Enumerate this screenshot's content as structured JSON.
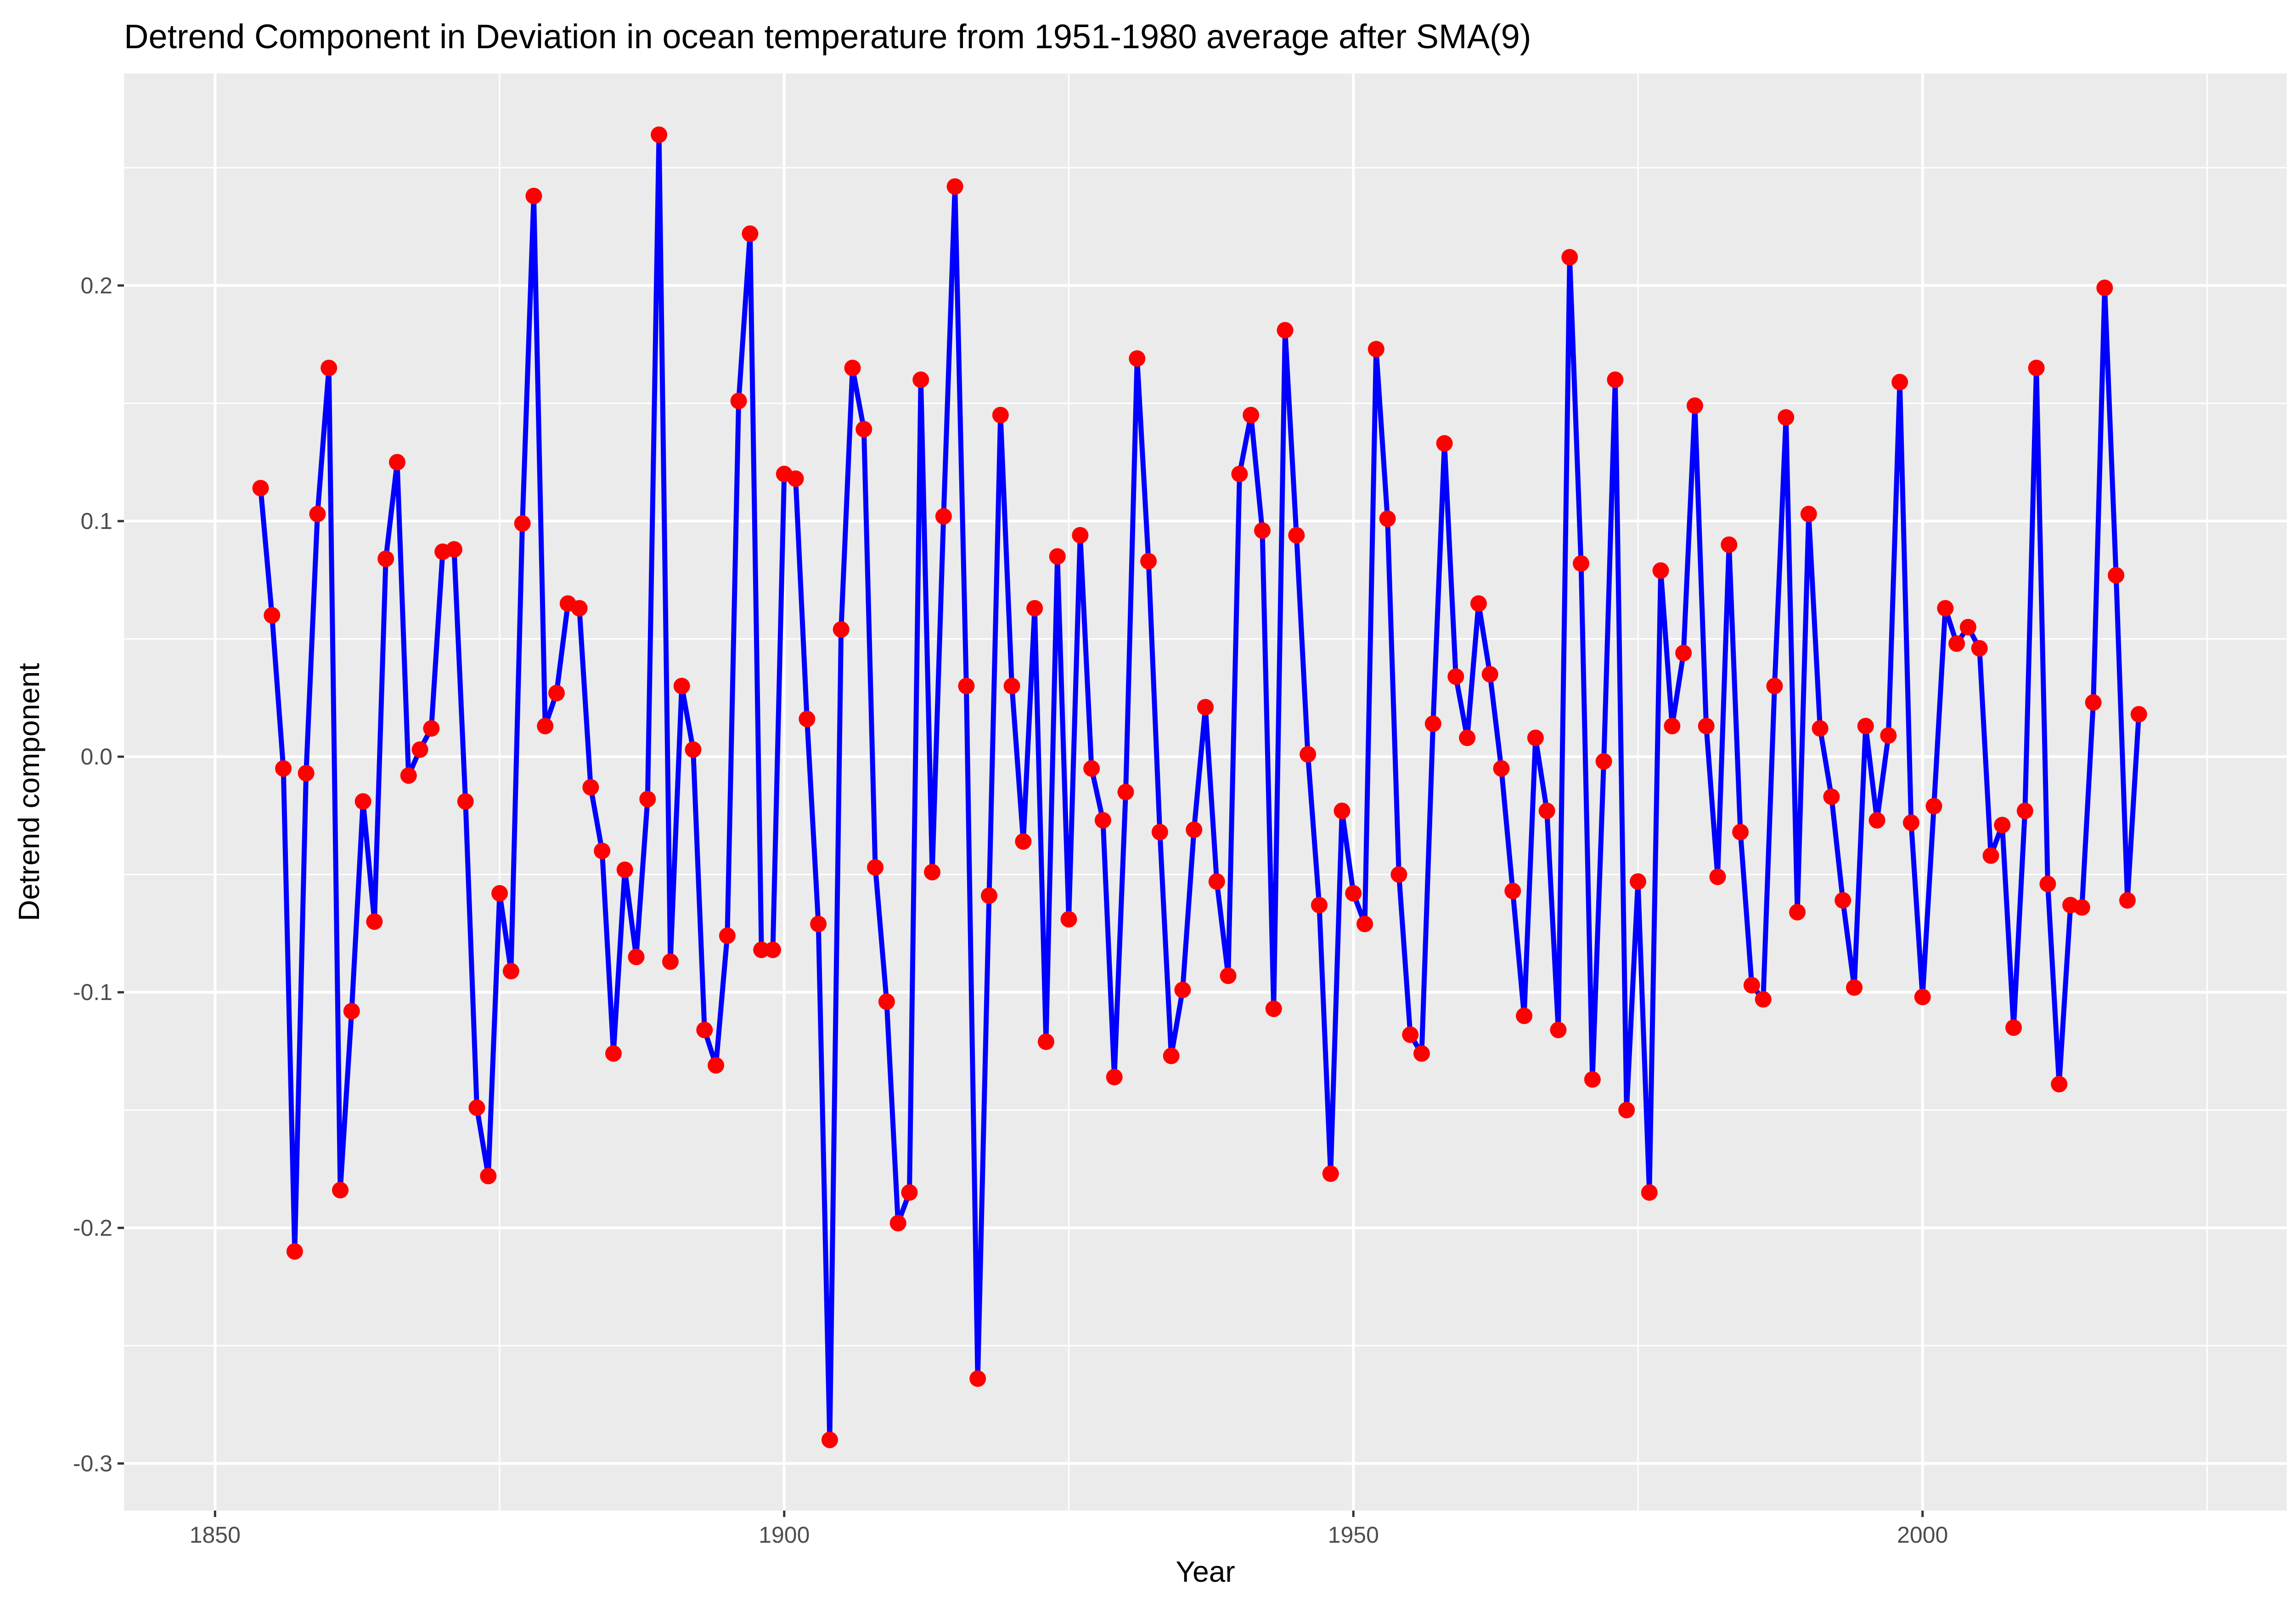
{
  "chart_data": {
    "type": "line",
    "title": "Detrend Component in Deviation in ocean temperature from 1951-1980 average after SMA(9)",
    "xlabel": "Year",
    "ylabel": "Detrend component",
    "xlim": [
      1842,
      2032
    ],
    "ylim": [
      -0.32,
      0.29
    ],
    "x_ticks": [
      1850,
      1900,
      1950,
      2000
    ],
    "x_tick_labels": [
      "1850",
      "1900",
      "1950",
      "2000"
    ],
    "y_ticks": [
      -0.3,
      -0.2,
      -0.1,
      0.0,
      0.1,
      0.2
    ],
    "y_tick_labels": [
      "-0.3",
      "-0.2",
      "-0.1",
      "0.0",
      "0.1",
      "0.2"
    ],
    "grid": true,
    "legend": "none",
    "colors": {
      "line": "#0000ff",
      "point": "#ff0000",
      "panel": "#ebebeb",
      "grid": "#ffffff"
    },
    "series": [
      {
        "x": [
          1854,
          1855,
          1856,
          1857,
          1858,
          1859,
          1860,
          1861,
          1862,
          1863,
          1864,
          1865,
          1866,
          1867,
          1868,
          1869,
          1870,
          1871,
          1872,
          1873,
          1874,
          1875,
          1876,
          1877,
          1878,
          1879,
          1880,
          1881,
          1882,
          1883,
          1884,
          1885,
          1886,
          1887,
          1888,
          1889,
          1890,
          1891,
          1892,
          1893,
          1894,
          1895,
          1896,
          1897,
          1898,
          1899,
          1900,
          1901,
          1902,
          1903,
          1904,
          1905,
          1906,
          1907,
          1908,
          1909,
          1910,
          1911,
          1912,
          1913,
          1914,
          1915,
          1916,
          1917,
          1918,
          1919,
          1920,
          1921,
          1922,
          1923,
          1924,
          1925,
          1926,
          1927,
          1928,
          1929,
          1930,
          1931,
          1932,
          1933,
          1934,
          1935,
          1936,
          1937,
          1938,
          1939,
          1940,
          1941,
          1942,
          1943,
          1944,
          1945,
          1946,
          1947,
          1948,
          1949,
          1950,
          1951,
          1952,
          1953,
          1954,
          1955,
          1956,
          1957,
          1958,
          1959,
          1960,
          1961,
          1962,
          1963,
          1964,
          1965,
          1966,
          1967,
          1968,
          1969,
          1970,
          1971,
          1972,
          1973,
          1974,
          1975,
          1976,
          1977,
          1978,
          1979,
          1980,
          1981,
          1982,
          1983,
          1984,
          1985,
          1986,
          1987,
          1988,
          1989,
          1990,
          1991,
          1992,
          1993,
          1994,
          1995,
          1996,
          1997,
          1998,
          1999,
          2000,
          2001,
          2002,
          2003,
          2004,
          2005,
          2006,
          2007,
          2008,
          2009,
          2010,
          2011,
          2012,
          2013,
          2014,
          2015,
          2016,
          2017,
          2018,
          2019
        ],
        "y": [
          0.114,
          0.06,
          -0.005,
          -0.21,
          -0.007,
          0.103,
          0.165,
          -0.184,
          -0.108,
          -0.019,
          -0.07,
          0.084,
          0.125,
          -0.008,
          0.003,
          0.012,
          0.087,
          0.088,
          -0.019,
          -0.149,
          -0.178,
          -0.058,
          -0.091,
          0.099,
          0.238,
          0.013,
          0.027,
          0.065,
          0.063,
          -0.013,
          -0.04,
          -0.126,
          -0.048,
          -0.085,
          -0.018,
          0.264,
          -0.087,
          0.03,
          0.003,
          -0.116,
          -0.131,
          -0.076,
          0.151,
          0.222,
          -0.082,
          -0.082,
          0.12,
          0.118,
          0.016,
          -0.071,
          -0.29,
          0.054,
          0.165,
          0.139,
          -0.047,
          -0.104,
          -0.198,
          -0.185,
          0.16,
          -0.049,
          0.102,
          0.242,
          0.03,
          -0.264,
          -0.059,
          0.145,
          0.03,
          -0.036,
          0.063,
          -0.121,
          0.085,
          -0.069,
          0.094,
          -0.005,
          -0.027,
          -0.136,
          -0.015,
          0.169,
          0.083,
          -0.032,
          -0.127,
          -0.099,
          -0.031,
          0.021,
          -0.053,
          -0.093,
          0.12,
          0.145,
          0.096,
          -0.107,
          0.181,
          0.094,
          0.001,
          -0.063,
          -0.177,
          -0.023,
          -0.058,
          -0.071,
          0.173,
          0.101,
          -0.05,
          -0.118,
          -0.126,
          0.014,
          0.133,
          0.034,
          0.008,
          0.065,
          0.035,
          -0.005,
          -0.057,
          -0.11,
          0.008,
          -0.023,
          -0.116,
          0.212,
          0.082,
          -0.137,
          -0.002,
          0.16,
          -0.15,
          -0.053,
          -0.185,
          0.079,
          0.013,
          0.044,
          0.149,
          0.013,
          -0.051,
          0.09,
          -0.032,
          -0.097,
          -0.103,
          0.03,
          0.144,
          -0.066,
          0.103,
          0.012,
          -0.017,
          -0.061,
          -0.098,
          0.013,
          -0.027,
          0.009,
          0.159,
          -0.028,
          -0.102,
          -0.021,
          0.063,
          0.048,
          0.055,
          0.046,
          -0.042,
          -0.029,
          -0.115,
          -0.023,
          0.165,
          -0.054,
          -0.139,
          -0.063,
          -0.064,
          0.023,
          0.199,
          0.077,
          -0.061,
          0.018
        ]
      }
    ]
  }
}
